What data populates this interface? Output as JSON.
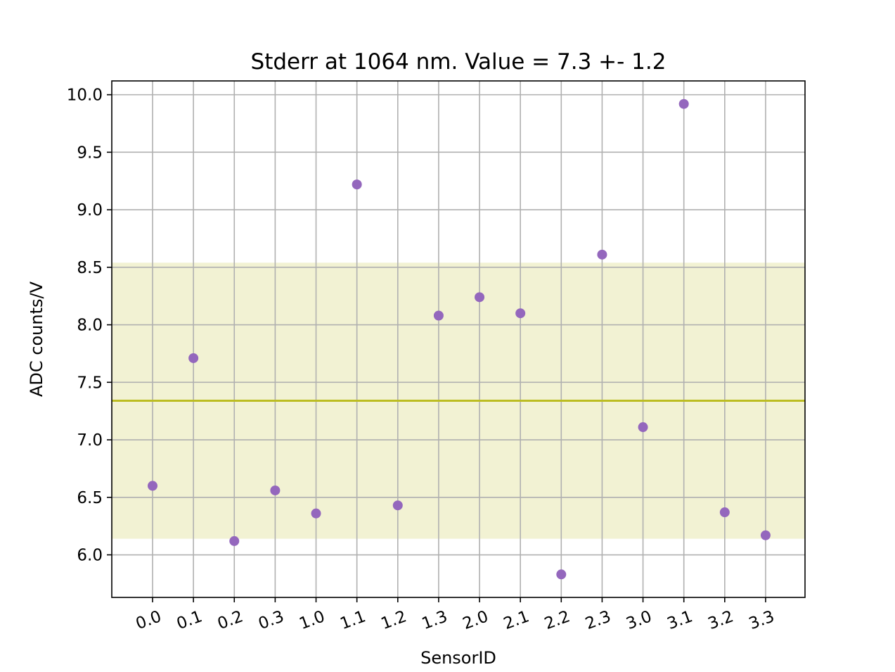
{
  "chart_data": {
    "type": "scatter",
    "title": "Stderr at 1064 nm. Value = 7.3 +- 1.2",
    "xlabel": "SensorID",
    "ylabel": "ADC counts/V",
    "categories": [
      "0.0",
      "0.1",
      "0.2",
      "0.3",
      "1.0",
      "1.1",
      "1.2",
      "1.3",
      "2.0",
      "2.1",
      "2.2",
      "2.3",
      "3.0",
      "3.1",
      "3.2",
      "3.3"
    ],
    "values": [
      6.6,
      7.71,
      6.12,
      6.56,
      6.36,
      9.22,
      6.43,
      8.08,
      8.24,
      8.1,
      5.83,
      8.61,
      7.11,
      9.92,
      6.37,
      6.17
    ],
    "ylim": [
      5.63,
      10.12
    ],
    "yticks": [
      6.0,
      6.5,
      7.0,
      7.5,
      8.0,
      8.5,
      9.0,
      9.5,
      10.0
    ],
    "mean": 7.34,
    "band": [
      6.14,
      8.54
    ],
    "grid": true,
    "colors": {
      "points": "#9467bd",
      "mean_line": "#bcbd22",
      "band": "#bcbd22"
    }
  }
}
